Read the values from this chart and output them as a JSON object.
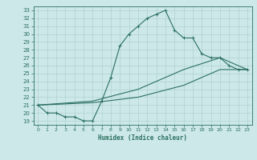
{
  "xlabel": "Humidex (Indice chaleur)",
  "xlim": [
    -0.5,
    23.5
  ],
  "ylim": [
    18.5,
    33.5
  ],
  "xticks": [
    0,
    1,
    2,
    3,
    4,
    5,
    6,
    7,
    8,
    9,
    10,
    11,
    12,
    13,
    14,
    15,
    16,
    17,
    18,
    19,
    20,
    21,
    22,
    23
  ],
  "yticks": [
    19,
    20,
    21,
    22,
    23,
    24,
    25,
    26,
    27,
    28,
    29,
    30,
    31,
    32,
    33
  ],
  "bg_color": "#cde8e8",
  "grid_color": "#a8cccc",
  "line_color": "#2a7060",
  "line1_x": [
    0,
    1,
    2,
    3,
    4,
    5,
    6,
    7,
    8,
    9,
    10,
    11,
    12,
    13,
    14,
    15,
    16,
    17,
    18,
    19,
    20,
    21,
    22,
    23
  ],
  "line1_y": [
    21.0,
    20.0,
    20.0,
    19.5,
    19.5,
    19.0,
    19.0,
    21.5,
    24.5,
    28.5,
    30.0,
    31.0,
    32.0,
    32.5,
    33.0,
    30.5,
    29.5,
    29.5,
    27.5,
    27.0,
    27.0,
    26.0,
    25.5,
    25.5
  ],
  "line2_x": [
    0,
    6,
    11,
    16,
    20,
    23
  ],
  "line2_y": [
    21.0,
    21.3,
    22.0,
    23.5,
    25.5,
    25.5
  ],
  "line3_x": [
    0,
    6,
    11,
    16,
    20,
    23
  ],
  "line3_y": [
    21.0,
    21.5,
    23.0,
    25.5,
    27.0,
    25.5
  ]
}
